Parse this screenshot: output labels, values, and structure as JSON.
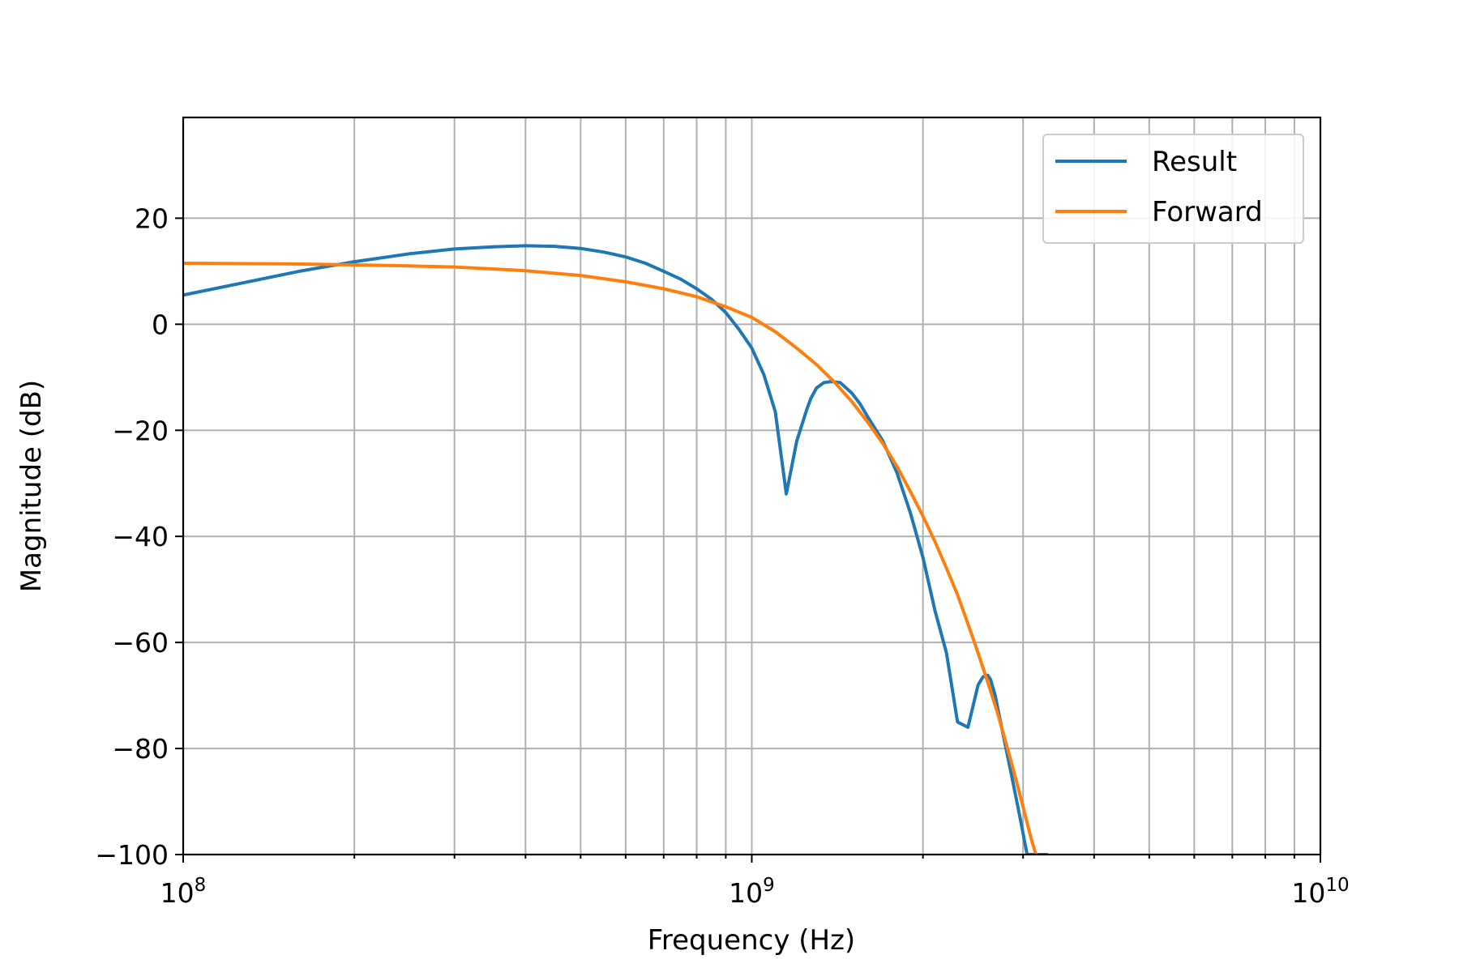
{
  "chart_data": {
    "type": "line",
    "title": "",
    "xlabel": "Frequency (Hz)",
    "ylabel": "Magnitude (dB)",
    "xscale": "log",
    "xlim": [
      100000000.0,
      10000000000.0
    ],
    "ylim": [
      -100,
      39
    ],
    "grid": true,
    "grid_minor_x": true,
    "legend_position": "top-right",
    "x_tick_labels": [
      {
        "value": 100000000.0,
        "base": "10",
        "exp": "8"
      },
      {
        "value": 1000000000.0,
        "base": "10",
        "exp": "9"
      },
      {
        "value": 10000000000.0,
        "base": "10",
        "exp": "10"
      }
    ],
    "y_tick_labels": [
      {
        "value": 20,
        "label": "20"
      },
      {
        "value": 0,
        "label": "0"
      },
      {
        "value": -20,
        "label": "−20"
      },
      {
        "value": -40,
        "label": "−40"
      },
      {
        "value": -60,
        "label": "−60"
      },
      {
        "value": -80,
        "label": "−80"
      },
      {
        "value": -100,
        "label": "−100"
      }
    ],
    "series": [
      {
        "name": "Result",
        "color": "#1f77b4",
        "x": [
          100000000.0,
          130000000.0,
          160000000.0,
          200000000.0,
          250000000.0,
          300000000.0,
          350000000.0,
          400000000.0,
          450000000.0,
          500000000.0,
          550000000.0,
          600000000.0,
          650000000.0,
          700000000.0,
          750000000.0,
          800000000.0,
          850000000.0,
          900000000.0,
          950000000.0,
          1000000000.0,
          1050000000.0,
          1100000000.0,
          1150000000.0,
          1200000000.0,
          1250000000.0,
          1270000000.0,
          1300000000.0,
          1340000000.0,
          1380000000.0,
          1430000000.0,
          1500000000.0,
          1550000000.0,
          1600000000.0,
          1700000000.0,
          1800000000.0,
          1900000000.0,
          2000000000.0,
          2100000000.0,
          2200000000.0,
          2300000000.0,
          2400000000.0,
          2500000000.0,
          2550000000.0,
          2600000000.0,
          2630000000.0,
          2680000000.0,
          2750000000.0,
          2850000000.0,
          2950000000.0,
          3050000000.0,
          3150000000.0,
          3300000000.0
        ],
        "y": [
          5.5,
          8,
          10,
          11.8,
          13.3,
          14.2,
          14.6,
          14.8,
          14.7,
          14.3,
          13.6,
          12.7,
          11.5,
          10,
          8.5,
          6.7,
          4.7,
          2.2,
          -1,
          -4.5,
          -9.5,
          -16.5,
          -32,
          -22,
          -16,
          -14,
          -12,
          -11,
          -10.8,
          -11,
          -13,
          -15,
          -17.5,
          -22,
          -28,
          -35.5,
          -44,
          -54,
          -62,
          -75,
          -76,
          -68,
          -66.5,
          -66.2,
          -67,
          -70,
          -76,
          -84,
          -92,
          -100,
          -100,
          -100
        ]
      },
      {
        "name": "Forward",
        "color": "#ff7f0e",
        "x": [
          100000000.0,
          150000000.0,
          200000000.0,
          250000000.0,
          300000000.0,
          400000000.0,
          500000000.0,
          600000000.0,
          700000000.0,
          800000000.0,
          900000000.0,
          1000000000.0,
          1100000000.0,
          1200000000.0,
          1300000000.0,
          1400000000.0,
          1500000000.0,
          1600000000.0,
          1700000000.0,
          1800000000.0,
          1900000000.0,
          2000000000.0,
          2100000000.0,
          2200000000.0,
          2300000000.0,
          2400000000.0,
          2500000000.0,
          2600000000.0,
          2700000000.0,
          2800000000.0,
          2900000000.0,
          3000000000.0,
          3100000000.0,
          3200000000.0
        ],
        "y": [
          11.5,
          11.4,
          11.2,
          11,
          10.8,
          10.1,
          9.2,
          8,
          6.7,
          5.2,
          3.3,
          1.3,
          -1.4,
          -4.5,
          -7.6,
          -11,
          -14.6,
          -18.5,
          -22.5,
          -26.8,
          -31.5,
          -36.2,
          -41,
          -46,
          -51,
          -56.5,
          -62,
          -67.5,
          -73,
          -79,
          -85,
          -91,
          -97,
          -102
        ]
      }
    ]
  }
}
